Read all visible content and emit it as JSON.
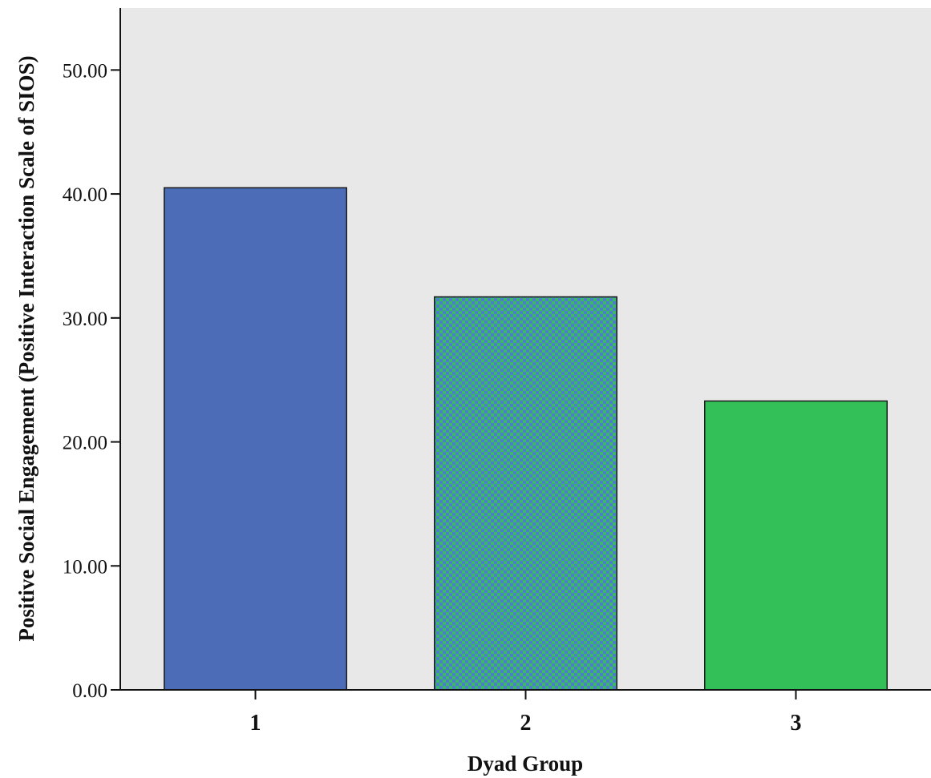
{
  "chart_data": {
    "type": "bar",
    "title": "",
    "xlabel": "Dyad Group",
    "ylabel": "Positive Social Engagement (Positive Interaction Scale of SIOS)",
    "categories": [
      "1",
      "2",
      "3"
    ],
    "values": [
      40.5,
      31.7,
      23.3
    ],
    "ylim": [
      0,
      55
    ],
    "yticks": [
      0,
      10,
      20,
      30,
      40,
      50
    ],
    "ytick_labels": [
      "0.00",
      "10.00",
      "20.00",
      "30.00",
      "40.00",
      "50.00"
    ],
    "grid": false,
    "legend": "none",
    "colors": {
      "plot_background": "#e8e8e8",
      "bar_1": "#4c6cb7",
      "bar_2_pattern_a": "#4a7ec6",
      "bar_2_pattern_b": "#3bb86a",
      "bar_3": "#34c058",
      "bar_outline": "#1a1a1a",
      "axis": "#111111"
    }
  }
}
